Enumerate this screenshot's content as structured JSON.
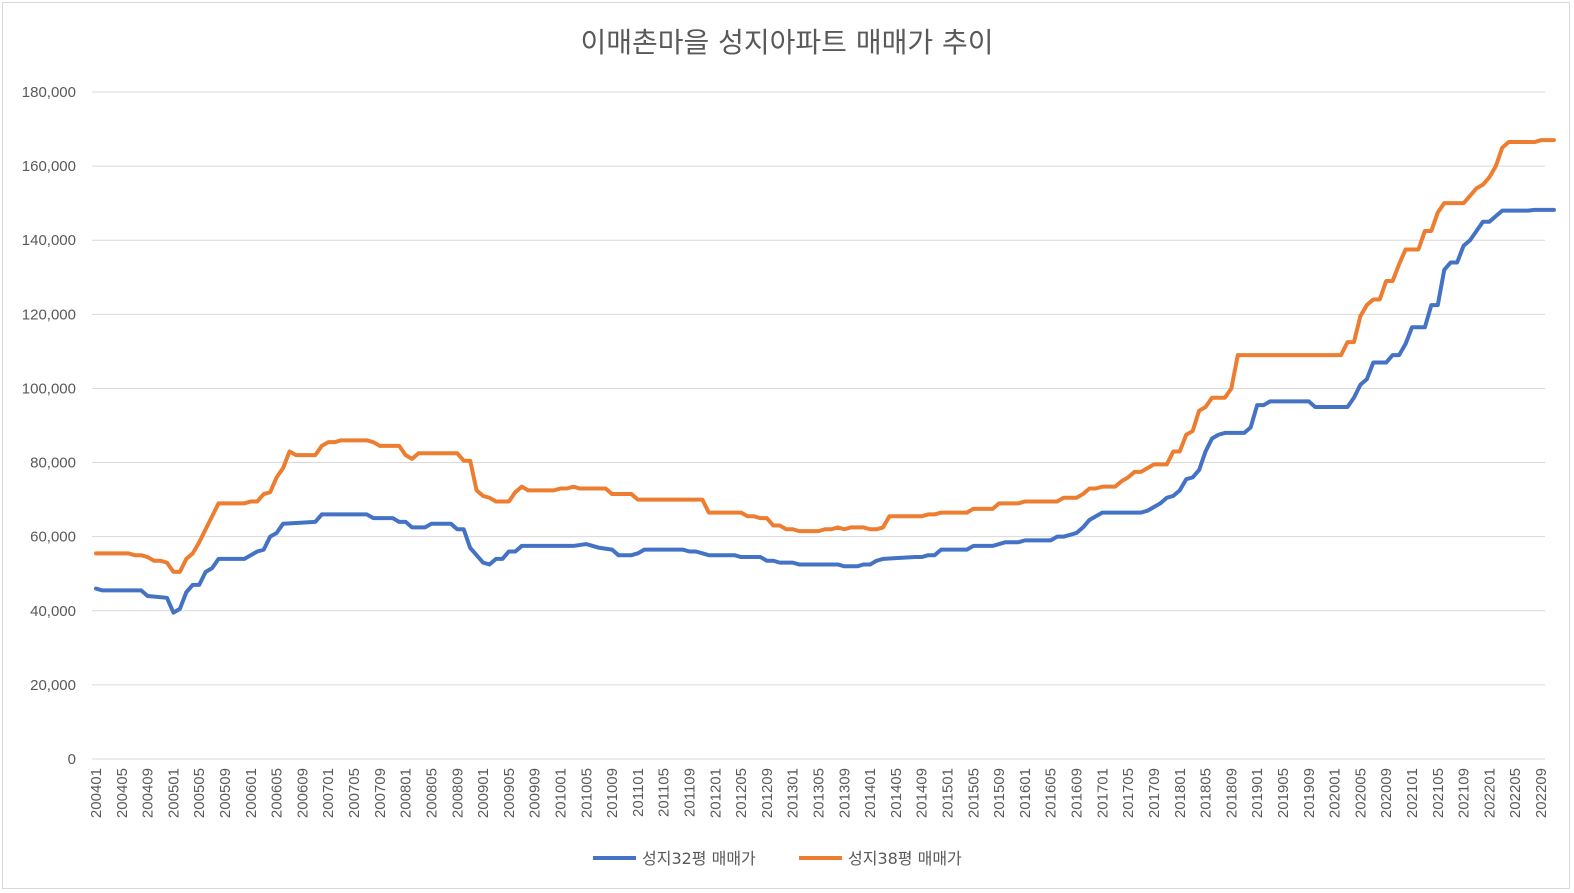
{
  "chart_data": {
    "type": "line",
    "title": "이매촌마을 성지아파트 매매가 추이",
    "xlabel": "",
    "ylabel": "",
    "ylim": [
      0,
      180000
    ],
    "y_ticks": [
      0,
      20000,
      40000,
      60000,
      80000,
      100000,
      120000,
      140000,
      160000,
      180000
    ],
    "y_tick_labels": [
      "0",
      "20,000",
      "40,000",
      "60,000",
      "80,000",
      "100,000",
      "120,000",
      "140,000",
      "160,000",
      "180,000"
    ],
    "x_tick_labels": [
      "200401",
      "200405",
      "200409",
      "200501",
      "200505",
      "200509",
      "200601",
      "200605",
      "200609",
      "200701",
      "200705",
      "200709",
      "200801",
      "200805",
      "200809",
      "200901",
      "200905",
      "200909",
      "201001",
      "201005",
      "201009",
      "201101",
      "201105",
      "201109",
      "201201",
      "201205",
      "201209",
      "201301",
      "201305",
      "201309",
      "201401",
      "201405",
      "201409",
      "201501",
      "201505",
      "201509",
      "201601",
      "201605",
      "201609",
      "201701",
      "201705",
      "201709",
      "201801",
      "201805",
      "201809",
      "201901",
      "201905",
      "201909",
      "202001",
      "202005",
      "202009",
      "202101",
      "202105",
      "202109",
      "202201",
      "202205",
      "202209"
    ],
    "grid": true,
    "legend_position": "bottom",
    "series": [
      {
        "name": "성지32평 매매가",
        "color": "#4472C4",
        "points": [
          [
            "200401",
            46000
          ],
          [
            "200402",
            45500
          ],
          [
            "200408",
            45500
          ],
          [
            "200409",
            44000
          ],
          [
            "200412",
            43500
          ],
          [
            "200501",
            39500
          ],
          [
            "200502",
            40500
          ],
          [
            "200503",
            45000
          ],
          [
            "200504",
            47000
          ],
          [
            "200505",
            47000
          ],
          [
            "200506",
            50500
          ],
          [
            "200507",
            51500
          ],
          [
            "200508",
            54000
          ],
          [
            "200512",
            54000
          ],
          [
            "200601",
            55000
          ],
          [
            "200602",
            56000
          ],
          [
            "200603",
            56500
          ],
          [
            "200604",
            60000
          ],
          [
            "200605",
            61000
          ],
          [
            "200606",
            63500
          ],
          [
            "200611",
            64000
          ],
          [
            "200612",
            66000
          ],
          [
            "200707",
            66000
          ],
          [
            "200708",
            65000
          ],
          [
            "200711",
            65000
          ],
          [
            "200712",
            64000
          ],
          [
            "200801",
            64000
          ],
          [
            "200802",
            62500
          ],
          [
            "200804",
            62500
          ],
          [
            "200805",
            63500
          ],
          [
            "200808",
            63500
          ],
          [
            "200809",
            62000
          ],
          [
            "200810",
            62000
          ],
          [
            "200811",
            57000
          ],
          [
            "200812",
            55000
          ],
          [
            "200901",
            53000
          ],
          [
            "200902",
            52500
          ],
          [
            "200903",
            54000
          ],
          [
            "200904",
            54000
          ],
          [
            "200905",
            56000
          ],
          [
            "200906",
            56000
          ],
          [
            "200907",
            57500
          ],
          [
            "201003",
            57500
          ],
          [
            "201005",
            58000
          ],
          [
            "201006",
            57500
          ],
          [
            "201007",
            57000
          ],
          [
            "201009",
            56500
          ],
          [
            "201010",
            55000
          ],
          [
            "201012",
            55000
          ],
          [
            "201101",
            55500
          ],
          [
            "201102",
            56500
          ],
          [
            "201108",
            56500
          ],
          [
            "201109",
            56000
          ],
          [
            "201110",
            56000
          ],
          [
            "201112",
            55000
          ],
          [
            "201204",
            55000
          ],
          [
            "201205",
            54500
          ],
          [
            "201208",
            54500
          ],
          [
            "201209",
            53500
          ],
          [
            "201210",
            53500
          ],
          [
            "201211",
            53000
          ],
          [
            "201301",
            53000
          ],
          [
            "201302",
            52500
          ],
          [
            "201308",
            52500
          ],
          [
            "201309",
            52000
          ],
          [
            "201311",
            52000
          ],
          [
            "201312",
            52500
          ],
          [
            "201401",
            52500
          ],
          [
            "201402",
            53500
          ],
          [
            "201403",
            54000
          ],
          [
            "201408",
            54500
          ],
          [
            "201409",
            54500
          ],
          [
            "201410",
            55000
          ],
          [
            "201411",
            55000
          ],
          [
            "201412",
            56500
          ],
          [
            "201504",
            56500
          ],
          [
            "201505",
            57500
          ],
          [
            "201508",
            57500
          ],
          [
            "201509",
            58000
          ],
          [
            "201510",
            58500
          ],
          [
            "201512",
            58500
          ],
          [
            "201601",
            59000
          ],
          [
            "201605",
            59000
          ],
          [
            "201606",
            60000
          ],
          [
            "201607",
            60000
          ],
          [
            "201608",
            60500
          ],
          [
            "201609",
            61000
          ],
          [
            "201610",
            62500
          ],
          [
            "201611",
            64500
          ],
          [
            "201612",
            65500
          ],
          [
            "201701",
            66500
          ],
          [
            "201707",
            66500
          ],
          [
            "201708",
            67000
          ],
          [
            "201709",
            68000
          ],
          [
            "201710",
            69000
          ],
          [
            "201711",
            70500
          ],
          [
            "201712",
            71000
          ],
          [
            "201801",
            72500
          ],
          [
            "201802",
            75500
          ],
          [
            "201803",
            76000
          ],
          [
            "201804",
            78000
          ],
          [
            "201805",
            83000
          ],
          [
            "201806",
            86500
          ],
          [
            "201807",
            87500
          ],
          [
            "201808",
            88000
          ],
          [
            "201811",
            88000
          ],
          [
            "201812",
            89500
          ],
          [
            "201901",
            95500
          ],
          [
            "201902",
            95500
          ],
          [
            "201903",
            96500
          ],
          [
            "201909",
            96500
          ],
          [
            "201910",
            95000
          ],
          [
            "202003",
            95000
          ],
          [
            "202004",
            97500
          ],
          [
            "202005",
            101000
          ],
          [
            "202006",
            102500
          ],
          [
            "202007",
            107000
          ],
          [
            "202009",
            107000
          ],
          [
            "202010",
            109000
          ],
          [
            "202011",
            109000
          ],
          [
            "202012",
            112000
          ],
          [
            "202101",
            116500
          ],
          [
            "202103",
            116500
          ],
          [
            "202104",
            122500
          ],
          [
            "202105",
            122500
          ],
          [
            "202106",
            132000
          ],
          [
            "202107",
            134000
          ],
          [
            "202108",
            134000
          ],
          [
            "202109",
            138500
          ],
          [
            "202110",
            140000
          ],
          [
            "202111",
            142500
          ],
          [
            "202112",
            145000
          ],
          [
            "202201",
            145000
          ],
          [
            "202202",
            146500
          ],
          [
            "202203",
            148000
          ],
          [
            "202207",
            148000
          ],
          [
            "202208",
            148200
          ],
          [
            "202211",
            148200
          ]
        ]
      },
      {
        "name": "성지38평 매매가",
        "color": "#ED7D31",
        "points": [
          [
            "200401",
            55500
          ],
          [
            "200406",
            55500
          ],
          [
            "200407",
            55000
          ],
          [
            "200408",
            55000
          ],
          [
            "200409",
            54500
          ],
          [
            "200410",
            53500
          ],
          [
            "200411",
            53500
          ],
          [
            "200412",
            53000
          ],
          [
            "200501",
            50500
          ],
          [
            "200502",
            50500
          ],
          [
            "200503",
            54000
          ],
          [
            "200504",
            55500
          ],
          [
            "200505",
            58500
          ],
          [
            "200506",
            62000
          ],
          [
            "200507",
            65500
          ],
          [
            "200508",
            69000
          ],
          [
            "200512",
            69000
          ],
          [
            "200601",
            69500
          ],
          [
            "200602",
            69500
          ],
          [
            "200603",
            71500
          ],
          [
            "200604",
            72000
          ],
          [
            "200605",
            76000
          ],
          [
            "200606",
            78500
          ],
          [
            "200607",
            83000
          ],
          [
            "200608",
            82000
          ],
          [
            "200611",
            82000
          ],
          [
            "200612",
            84500
          ],
          [
            "200701",
            85500
          ],
          [
            "200702",
            85500
          ],
          [
            "200703",
            86000
          ],
          [
            "200707",
            86000
          ],
          [
            "200708",
            85500
          ],
          [
            "200709",
            84500
          ],
          [
            "200712",
            84500
          ],
          [
            "200801",
            82000
          ],
          [
            "200802",
            81000
          ],
          [
            "200803",
            82500
          ],
          [
            "200809",
            82500
          ],
          [
            "200810",
            80500
          ],
          [
            "200811",
            80500
          ],
          [
            "200812",
            72500
          ],
          [
            "200901",
            71000
          ],
          [
            "200902",
            70500
          ],
          [
            "200903",
            69500
          ],
          [
            "200905",
            69500
          ],
          [
            "200906",
            72000
          ],
          [
            "200907",
            73500
          ],
          [
            "200908",
            72500
          ],
          [
            "200912",
            72500
          ],
          [
            "201001",
            73000
          ],
          [
            "201002",
            73000
          ],
          [
            "201003",
            73500
          ],
          [
            "201004",
            73000
          ],
          [
            "201008",
            73000
          ],
          [
            "201009",
            71500
          ],
          [
            "201012",
            71500
          ],
          [
            "201101",
            70000
          ],
          [
            "201111",
            70000
          ],
          [
            "201112",
            66500
          ],
          [
            "201205",
            66500
          ],
          [
            "201206",
            65500
          ],
          [
            "201207",
            65500
          ],
          [
            "201208",
            65000
          ],
          [
            "201209",
            65000
          ],
          [
            "201210",
            63000
          ],
          [
            "201211",
            63000
          ],
          [
            "201212",
            62000
          ],
          [
            "201301",
            62000
          ],
          [
            "201302",
            61500
          ],
          [
            "201305",
            61500
          ],
          [
            "201306",
            62000
          ],
          [
            "201307",
            62000
          ],
          [
            "201308",
            62500
          ],
          [
            "201309",
            62000
          ],
          [
            "201310",
            62500
          ],
          [
            "201312",
            62500
          ],
          [
            "201401",
            62000
          ],
          [
            "201402",
            62000
          ],
          [
            "201403",
            62500
          ],
          [
            "201404",
            65500
          ],
          [
            "201409",
            65500
          ],
          [
            "201410",
            66000
          ],
          [
            "201411",
            66000
          ],
          [
            "201412",
            66500
          ],
          [
            "201504",
            66500
          ],
          [
            "201505",
            67500
          ],
          [
            "201508",
            67500
          ],
          [
            "201509",
            69000
          ],
          [
            "201512",
            69000
          ],
          [
            "201601",
            69500
          ],
          [
            "201606",
            69500
          ],
          [
            "201607",
            70500
          ],
          [
            "201609",
            70500
          ],
          [
            "201610",
            71500
          ],
          [
            "201611",
            73000
          ],
          [
            "201612",
            73000
          ],
          [
            "201701",
            73500
          ],
          [
            "201703",
            73500
          ],
          [
            "201704",
            75000
          ],
          [
            "201705",
            76000
          ],
          [
            "201706",
            77500
          ],
          [
            "201707",
            77500
          ],
          [
            "201708",
            78500
          ],
          [
            "201709",
            79500
          ],
          [
            "201711",
            79500
          ],
          [
            "201712",
            83000
          ],
          [
            "201801",
            83000
          ],
          [
            "201802",
            87500
          ],
          [
            "201803",
            88500
          ],
          [
            "201804",
            94000
          ],
          [
            "201805",
            95000
          ],
          [
            "201806",
            97500
          ],
          [
            "201808",
            97500
          ],
          [
            "201809",
            100000
          ],
          [
            "201810",
            109000
          ],
          [
            "202002",
            109000
          ],
          [
            "202003",
            112500
          ],
          [
            "202004",
            112500
          ],
          [
            "202005",
            119500
          ],
          [
            "202006",
            122500
          ],
          [
            "202007",
            124000
          ],
          [
            "202008",
            124000
          ],
          [
            "202009",
            129000
          ],
          [
            "202010",
            129000
          ],
          [
            "202011",
            133500
          ],
          [
            "202012",
            137500
          ],
          [
            "202102",
            137500
          ],
          [
            "202103",
            142500
          ],
          [
            "202104",
            142500
          ],
          [
            "202105",
            147500
          ],
          [
            "202106",
            150000
          ],
          [
            "202109",
            150000
          ],
          [
            "202110",
            152000
          ],
          [
            "202111",
            154000
          ],
          [
            "202112",
            155000
          ],
          [
            "202201",
            157000
          ],
          [
            "202202",
            160000
          ],
          [
            "202203",
            165000
          ],
          [
            "202204",
            166500
          ],
          [
            "202208",
            166500
          ],
          [
            "202209",
            167000
          ],
          [
            "202211",
            167000
          ]
        ]
      }
    ]
  }
}
